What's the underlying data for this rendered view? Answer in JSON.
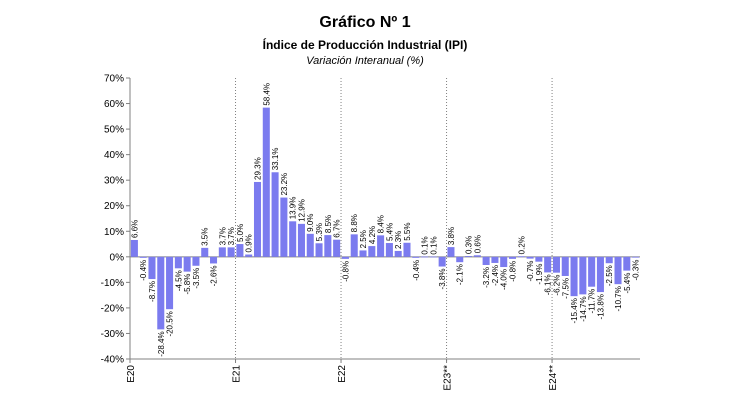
{
  "chart_data": {
    "type": "bar",
    "title": "Gráfico Nº 1",
    "subtitle": "Índice de Producción Industrial (IPI)",
    "ylabel_note": "Variación Interanual (%)",
    "ylim": [
      -40,
      70
    ],
    "yticks": [
      "-40%",
      "-30%",
      "-20%",
      "-10%",
      "0%",
      "10%",
      "20%",
      "30%",
      "40%",
      "50%",
      "60%",
      "70%"
    ],
    "bar_color": "#7b7bef",
    "grid": false,
    "values": [
      6.6,
      -0.4,
      -8.7,
      -28.4,
      -20.5,
      -4.5,
      -5.8,
      -3.5,
      3.5,
      -2.6,
      3.7,
      3.7,
      5.0,
      0.9,
      29.3,
      58.4,
      33.1,
      23.2,
      13.9,
      12.9,
      9.0,
      5.3,
      8.5,
      6.7,
      -0.8,
      8.8,
      2.5,
      4.2,
      8.4,
      5.4,
      2.3,
      5.5,
      -0.4,
      0.1,
      0.1,
      -3.8,
      3.8,
      -2.1,
      0.3,
      0.6,
      -3.2,
      -2.4,
      -4.0,
      -0.8,
      0.2,
      -0.7,
      -1.9,
      -6.1,
      -6.2,
      -7.5,
      -15.4,
      -14.7,
      -11.7,
      -13.8,
      -2.5,
      -10.7,
      -5.4,
      -0.3
    ],
    "labels": [
      "6.6%",
      "-0.4%",
      "-8.7%",
      "-28.4%",
      "-20.5%",
      "-4.5%",
      "-5.8%",
      "-3.5%",
      "3.5%",
      "-2.6%",
      "3.7%",
      "3.7%",
      "5.0%",
      "0.9%",
      "29.3%",
      "58.4%",
      "33.1%",
      "23.2%",
      "13.9%",
      "12.9%",
      "9.0%",
      "5.3%",
      "8.5%",
      "6.7%",
      "-0.8%",
      "8.8%",
      "2.5%",
      "4.2%",
      "8.4%",
      "5.4%",
      "2.3%",
      "5.5%",
      "-0.4%",
      "0.1%",
      "0.1%",
      "-3.8%",
      "3.8%",
      "-2.1%",
      "0.3%",
      "0.6%",
      "-3.2%",
      "-2.4%",
      "-4.0%",
      "-0.8%",
      "0.2%",
      "-0.7%",
      "-1.9%",
      "-6.1%",
      "-6.2%",
      "-7.5%",
      "-15.4%",
      "-14.7%",
      "-11.7%",
      "-13.8%",
      "-2.5%",
      "-10.7%",
      "-5.4%",
      "-0.3%"
    ],
    "x_year_labels": [
      {
        "label": "E20",
        "index": 0
      },
      {
        "label": "E21",
        "index": 12
      },
      {
        "label": "E22",
        "index": 24
      },
      {
        "label": "E23**",
        "index": 36
      },
      {
        "label": "E24**",
        "index": 48
      }
    ]
  }
}
